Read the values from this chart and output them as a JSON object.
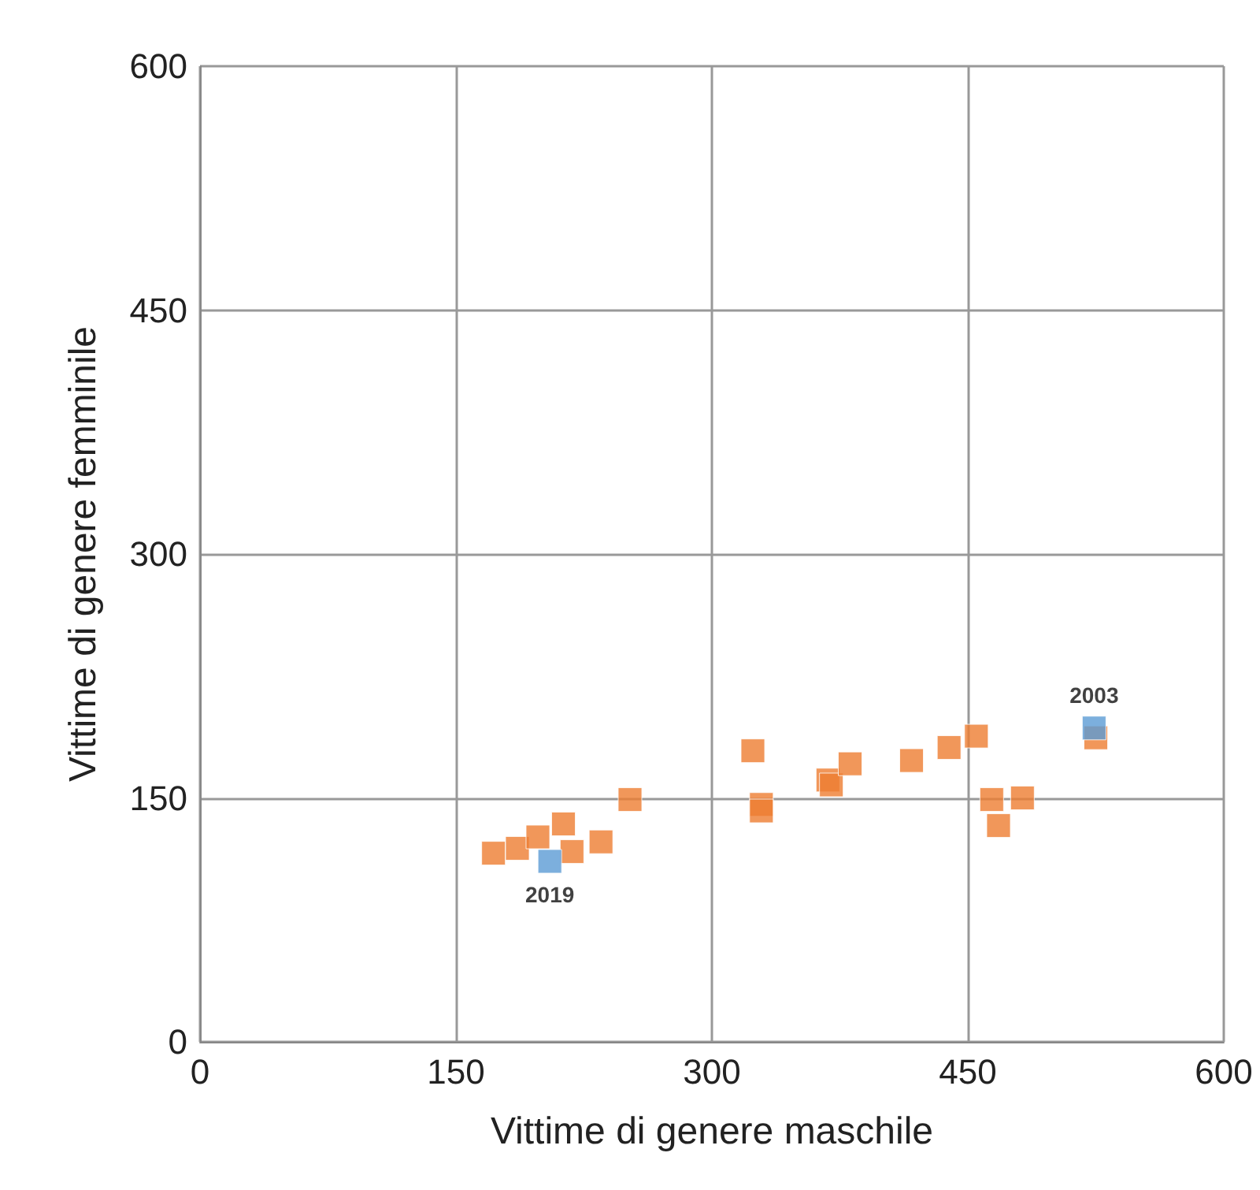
{
  "chart_data": {
    "type": "scatter",
    "xlabel": "Vittime di genere maschile",
    "ylabel": "Vittime di genere femminile",
    "xlim": [
      0,
      600
    ],
    "xticks": [
      0,
      150,
      300,
      450,
      600
    ],
    "ylim": [
      0,
      600
    ],
    "yticks": [
      0,
      150,
      300,
      450,
      600
    ],
    "grid": true,
    "marker": "square",
    "series": [
      {
        "color": "#ed7d31",
        "x": [
          172,
          186,
          198,
          213,
          218,
          235,
          252,
          324,
          329,
          329,
          368,
          370,
          381,
          417,
          439,
          455,
          464,
          468,
          482,
          525
        ],
        "values": [
          116,
          119,
          126,
          134,
          117,
          123,
          149,
          179,
          146,
          142,
          161,
          158,
          171,
          173,
          181,
          188,
          149,
          133,
          150,
          187
        ]
      },
      {
        "color": "#5b9bd5",
        "x": [
          205,
          524
        ],
        "values": [
          111,
          193
        ]
      }
    ],
    "annotations": [
      {
        "text": "2019",
        "x": 205,
        "y": 111
      },
      {
        "text": "2003",
        "x": 524,
        "y": 193
      }
    ]
  }
}
